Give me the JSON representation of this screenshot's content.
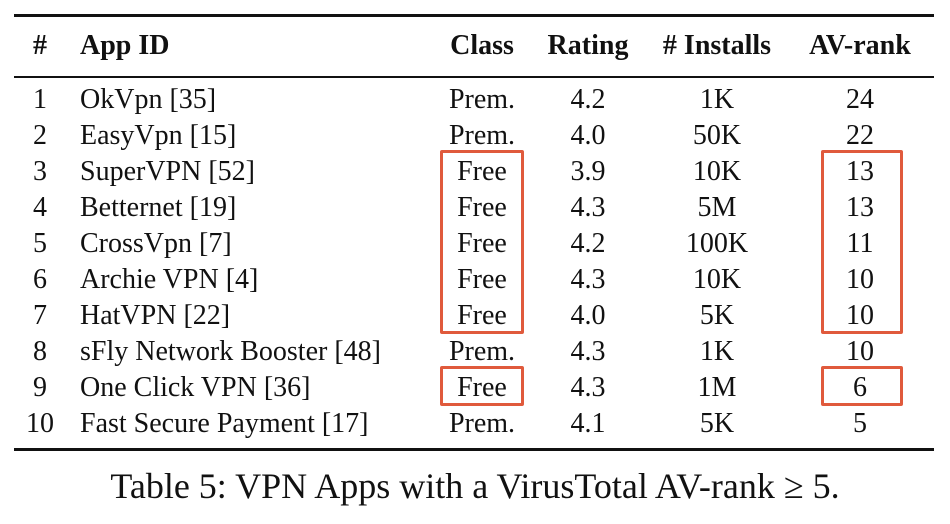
{
  "table": {
    "headers": {
      "num": "#",
      "app_id": "App ID",
      "class": "Class",
      "rating": "Rating",
      "installs": "# Installs",
      "av_rank": "AV-rank"
    },
    "rows": [
      {
        "num": "1",
        "app": "OkVpn [35]",
        "class": "Prem.",
        "rating": "4.2",
        "installs": "1K",
        "av": "24"
      },
      {
        "num": "2",
        "app": "EasyVpn [15]",
        "class": "Prem.",
        "rating": "4.0",
        "installs": "50K",
        "av": "22"
      },
      {
        "num": "3",
        "app": "SuperVPN [52]",
        "class": "Free",
        "rating": "3.9",
        "installs": "10K",
        "av": "13"
      },
      {
        "num": "4",
        "app": "Betternet [19]",
        "class": "Free",
        "rating": "4.3",
        "installs": "5M",
        "av": "13"
      },
      {
        "num": "5",
        "app": "CrossVpn [7]",
        "class": "Free",
        "rating": "4.2",
        "installs": "100K",
        "av": "11"
      },
      {
        "num": "6",
        "app": "Archie VPN [4]",
        "class": "Free",
        "rating": "4.3",
        "installs": "10K",
        "av": "10"
      },
      {
        "num": "7",
        "app": "HatVPN [22]",
        "class": "Free",
        "rating": "4.0",
        "installs": "5K",
        "av": "10"
      },
      {
        "num": "8",
        "app": "sFly Network Booster [48]",
        "class": "Prem.",
        "rating": "4.3",
        "installs": "1K",
        "av": "10"
      },
      {
        "num": "9",
        "app": "One Click VPN [36]",
        "class": "Free",
        "rating": "4.3",
        "installs": "1M",
        "av": "6"
      },
      {
        "num": "10",
        "app": "Fast Secure Payment [17]",
        "class": "Prem.",
        "rating": "4.1",
        "installs": "5K",
        "av": "5"
      }
    ]
  },
  "caption": "Table 5: VPN Apps with a VirusTotal AV-rank ≥ 5.",
  "highlight_color": "#e05a3c"
}
